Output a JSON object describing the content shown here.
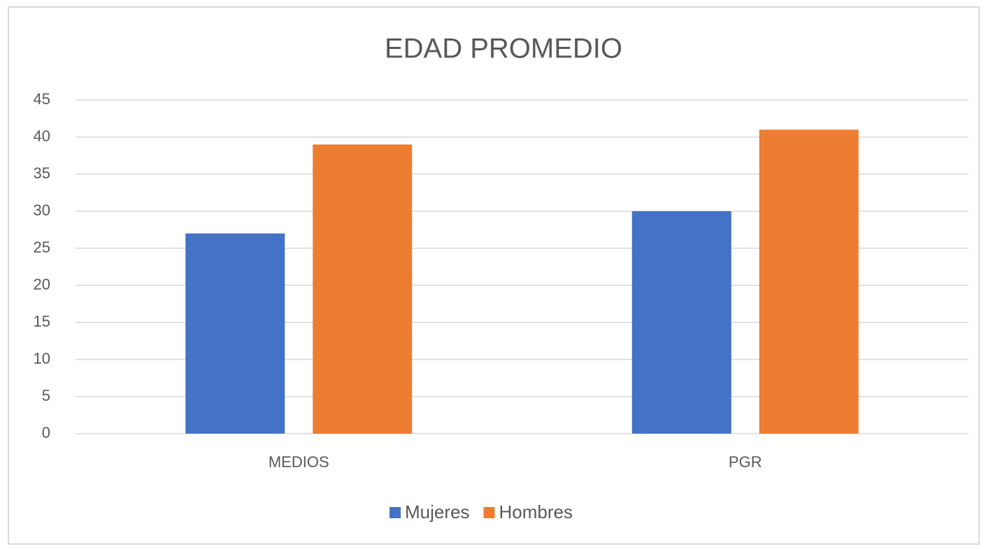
{
  "chart_data": {
    "type": "bar",
    "title": "EDAD PROMEDIO",
    "categories": [
      "MEDIOS",
      "PGR"
    ],
    "series": [
      {
        "name": "Mujeres",
        "color": "#4472c4",
        "values": [
          27,
          30
        ]
      },
      {
        "name": "Hombres",
        "color": "#ed7d31",
        "values": [
          39,
          41
        ]
      }
    ],
    "ylim": [
      0,
      45
    ],
    "yticks": [
      0,
      5,
      10,
      15,
      20,
      25,
      30,
      35,
      40,
      45
    ],
    "grid": true,
    "legend": "bottom"
  }
}
